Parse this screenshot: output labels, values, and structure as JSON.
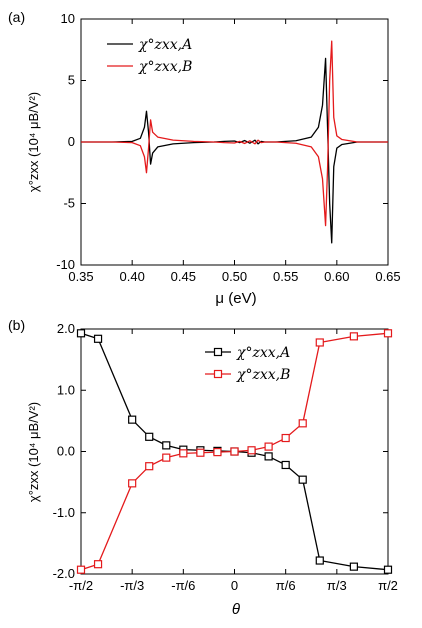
{
  "chart_data": [
    {
      "type": "line",
      "panel_label": "(a)",
      "xlabel": "μ (eV)",
      "ylabel": "χ°zxx (10⁴ μB/V²)",
      "xlim": [
        0.35,
        0.65
      ],
      "ylim": [
        -10,
        10
      ],
      "xticks": [
        "0.35",
        "0.40",
        "0.45",
        "0.50",
        "0.55",
        "0.60",
        "0.65"
      ],
      "yticks": [
        "-10",
        "-5",
        "0",
        "5",
        "10"
      ],
      "legend_position": "top-left",
      "colors": {
        "A": "#000000",
        "B": "#e41a1c"
      },
      "series": [
        {
          "name": "χ°zxx,A",
          "color": "#000000",
          "x": [
            0.35,
            0.38,
            0.4,
            0.408,
            0.412,
            0.414,
            0.416,
            0.418,
            0.42,
            0.425,
            0.44,
            0.46,
            0.48,
            0.49,
            0.5,
            0.505,
            0.51,
            0.515,
            0.518,
            0.52,
            0.523,
            0.526,
            0.53,
            0.54,
            0.56,
            0.575,
            0.582,
            0.586,
            0.589,
            0.591,
            0.593,
            0.595,
            0.597,
            0.6,
            0.605,
            0.62,
            0.65
          ],
          "y": [
            0,
            0,
            0.05,
            0.3,
            1.2,
            2.5,
            0.8,
            -1.8,
            -0.9,
            -0.4,
            -0.15,
            -0.05,
            0,
            0.05,
            0.08,
            -0.05,
            0.12,
            -0.1,
            0.05,
            0.15,
            -0.15,
            0.05,
            0,
            0,
            0.1,
            0.4,
            1.2,
            3,
            6.8,
            1,
            -5,
            -8.2,
            -2,
            -0.5,
            -0.2,
            0,
            0
          ]
        },
        {
          "name": "χ°zxx,B",
          "color": "#e41a1c",
          "x": [
            0.35,
            0.38,
            0.4,
            0.408,
            0.412,
            0.414,
            0.416,
            0.418,
            0.42,
            0.425,
            0.44,
            0.46,
            0.48,
            0.49,
            0.5,
            0.505,
            0.51,
            0.515,
            0.518,
            0.52,
            0.523,
            0.526,
            0.53,
            0.54,
            0.56,
            0.575,
            0.582,
            0.586,
            0.589,
            0.591,
            0.593,
            0.595,
            0.597,
            0.6,
            0.605,
            0.62,
            0.65
          ],
          "y": [
            0,
            0,
            -0.05,
            -0.3,
            -1.2,
            -2.5,
            -0.5,
            1.8,
            0.8,
            0.4,
            0.15,
            0.05,
            0,
            -0.05,
            -0.08,
            0.05,
            -0.12,
            0.1,
            -0.05,
            -0.15,
            0.15,
            -0.05,
            0,
            0,
            -0.1,
            -0.4,
            -1.2,
            -3,
            -6.8,
            -2,
            5,
            8.2,
            2,
            0.5,
            0.2,
            0,
            0
          ]
        }
      ]
    },
    {
      "type": "line",
      "panel_label": "(b)",
      "xlabel": "θ",
      "ylabel": "χ°zxx (10⁴ μB/V²)",
      "xlim": [
        -90,
        90
      ],
      "ylim": [
        -2,
        2
      ],
      "xticks": [
        "-π/2",
        "-π/3",
        "-π/6",
        "0",
        "π/6",
        "π/3",
        "π/2"
      ],
      "yticks": [
        "-2.0",
        "-1.0",
        "0.0",
        "1.0",
        "2.0"
      ],
      "legend_position": "top-center",
      "markers": "open-square",
      "series": [
        {
          "name": "χ°zxx,A",
          "color": "#000000",
          "x": [
            -90,
            -80,
            -60,
            -50,
            -40,
            -30,
            -20,
            -10,
            0,
            10,
            20,
            30,
            40,
            50,
            70,
            90
          ],
          "y": [
            1.93,
            1.84,
            0.52,
            0.24,
            0.1,
            0.03,
            0.02,
            0.01,
            0,
            -0.02,
            -0.08,
            -0.22,
            -0.46,
            -1.78,
            -1.88,
            -1.93
          ]
        },
        {
          "name": "χ°zxx,B",
          "color": "#e41a1c",
          "x": [
            -90,
            -80,
            -60,
            -50,
            -40,
            -30,
            -20,
            -10,
            0,
            10,
            20,
            30,
            40,
            50,
            70,
            90
          ],
          "y": [
            -1.93,
            -1.84,
            -0.52,
            -0.24,
            -0.1,
            -0.03,
            -0.02,
            -0.01,
            0,
            0.02,
            0.08,
            0.22,
            0.46,
            1.78,
            1.88,
            1.93
          ]
        }
      ]
    }
  ]
}
